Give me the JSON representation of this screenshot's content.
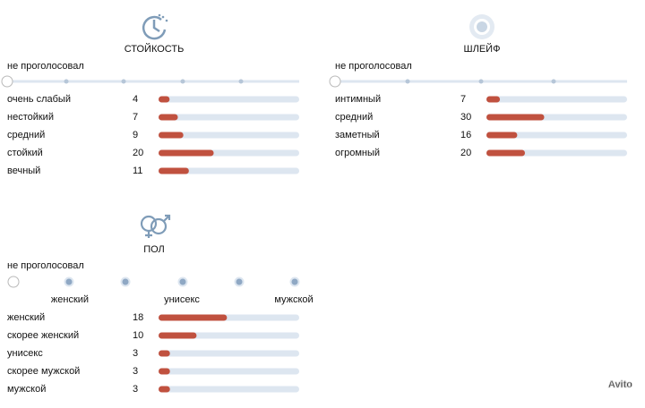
{
  "sections": [
    {
      "title": "СТОЙКОСТЬ",
      "not_voted": "не проголосовал",
      "options": [
        {
          "label": "очень слабый",
          "count": 4
        },
        {
          "label": "нестойкий",
          "count": 7
        },
        {
          "label": "средний",
          "count": 9
        },
        {
          "label": "стойкий",
          "count": 20
        },
        {
          "label": "вечный",
          "count": 11
        }
      ]
    },
    {
      "title": "ШЛЕЙФ",
      "not_voted": "не проголосовал",
      "options": [
        {
          "label": "интимный",
          "count": 7
        },
        {
          "label": "средний",
          "count": 30
        },
        {
          "label": "заметный",
          "count": 16
        },
        {
          "label": "огромный",
          "count": 20
        }
      ]
    },
    {
      "title": "ПОЛ",
      "not_voted": "не проголосовал",
      "scale_labels": [
        "женский",
        "унисекс",
        "мужской"
      ],
      "options": [
        {
          "label": "женский",
          "count": 18
        },
        {
          "label": "скорее женский",
          "count": 10
        },
        {
          "label": "унисекс",
          "count": 3
        },
        {
          "label": "скорее мужской",
          "count": 3
        },
        {
          "label": "мужской",
          "count": 3
        }
      ]
    }
  ],
  "watermark": "Avito"
}
